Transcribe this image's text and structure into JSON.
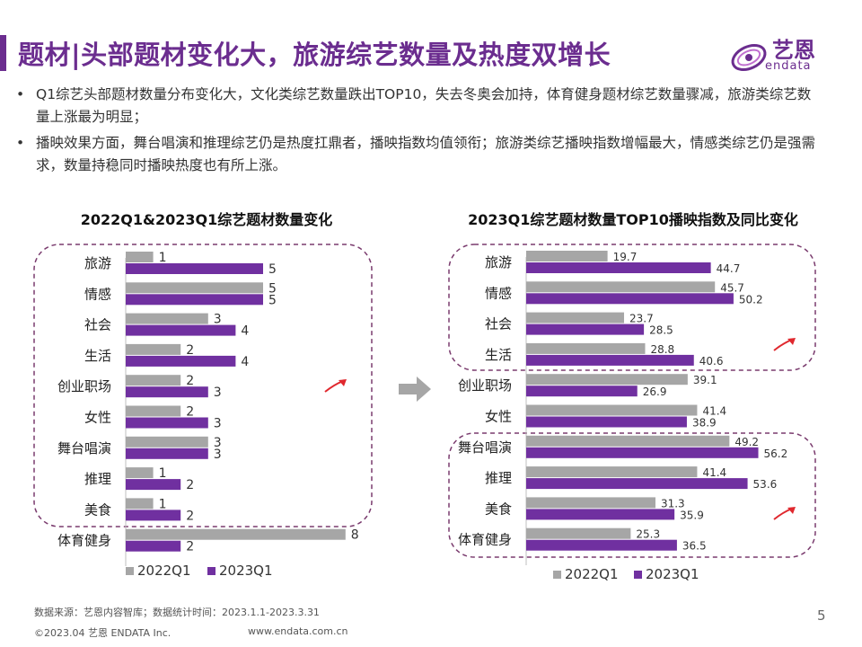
{
  "page": {
    "title": "题材|头部题材变化大，旅游综艺数量及热度双增长",
    "page_number": "5"
  },
  "logo": {
    "cn": "艺恩",
    "en": "endata"
  },
  "bullets": [
    "Q1综艺头部题材数量分布变化大，文化类综艺数量跌出TOP10，失去冬奥会加持，体育健身题材综艺数量骤减，旅游类综艺数量上涨最为明显；",
    "播映效果方面，舞台唱演和推理综艺仍是热度扛鼎者，播映指数均值领衔；旅游类综艺播映指数增幅最大，情感类综艺仍是强需求，数量持稳同时播映热度也有所上涨。"
  ],
  "footer": {
    "source": "数据来源：艺恩内容智库；数据统计时间：2023.1.1-2023.3.31",
    "copyright": "©2023.04 艺恩 ENDATA Inc.",
    "website": "www.endata.com.cn"
  },
  "colors": {
    "q2022": "#a6a6a6",
    "q2023": "#7030a0",
    "accent": "#6b2d8f",
    "arrow": "#e0282e",
    "dash": "#7a3b6e"
  },
  "chart_data": [
    {
      "type": "bar",
      "orientation": "horizontal",
      "title": "2022Q1&2023Q1综艺题材数量变化",
      "categories": [
        "旅游",
        "情感",
        "社会",
        "生活",
        "创业职场",
        "女性",
        "舞台唱演",
        "推理",
        "美食",
        "体育健身"
      ],
      "series": [
        {
          "name": "2022Q1",
          "values": [
            1,
            5,
            3,
            2,
            2,
            2,
            3,
            1,
            1,
            8
          ]
        },
        {
          "name": "2023Q1",
          "values": [
            5,
            5,
            4,
            4,
            3,
            3,
            3,
            2,
            2,
            2
          ]
        }
      ],
      "legend": "bottom"
    },
    {
      "type": "bar",
      "orientation": "horizontal",
      "title": "2023Q1综艺题材数量TOP10播映指数及同比变化",
      "categories": [
        "旅游",
        "情感",
        "社会",
        "生活",
        "创业职场",
        "女性",
        "舞台唱演",
        "推理",
        "美食",
        "体育健身"
      ],
      "series": [
        {
          "name": "2022Q1",
          "values": [
            19.7,
            45.7,
            23.7,
            28.8,
            39.1,
            41.4,
            49.2,
            41.4,
            31.3,
            25.3
          ]
        },
        {
          "name": "2023Q1",
          "values": [
            44.7,
            50.2,
            28.5,
            40.6,
            26.9,
            38.9,
            56.2,
            53.6,
            35.9,
            36.5
          ]
        }
      ],
      "legend": "bottom"
    }
  ]
}
